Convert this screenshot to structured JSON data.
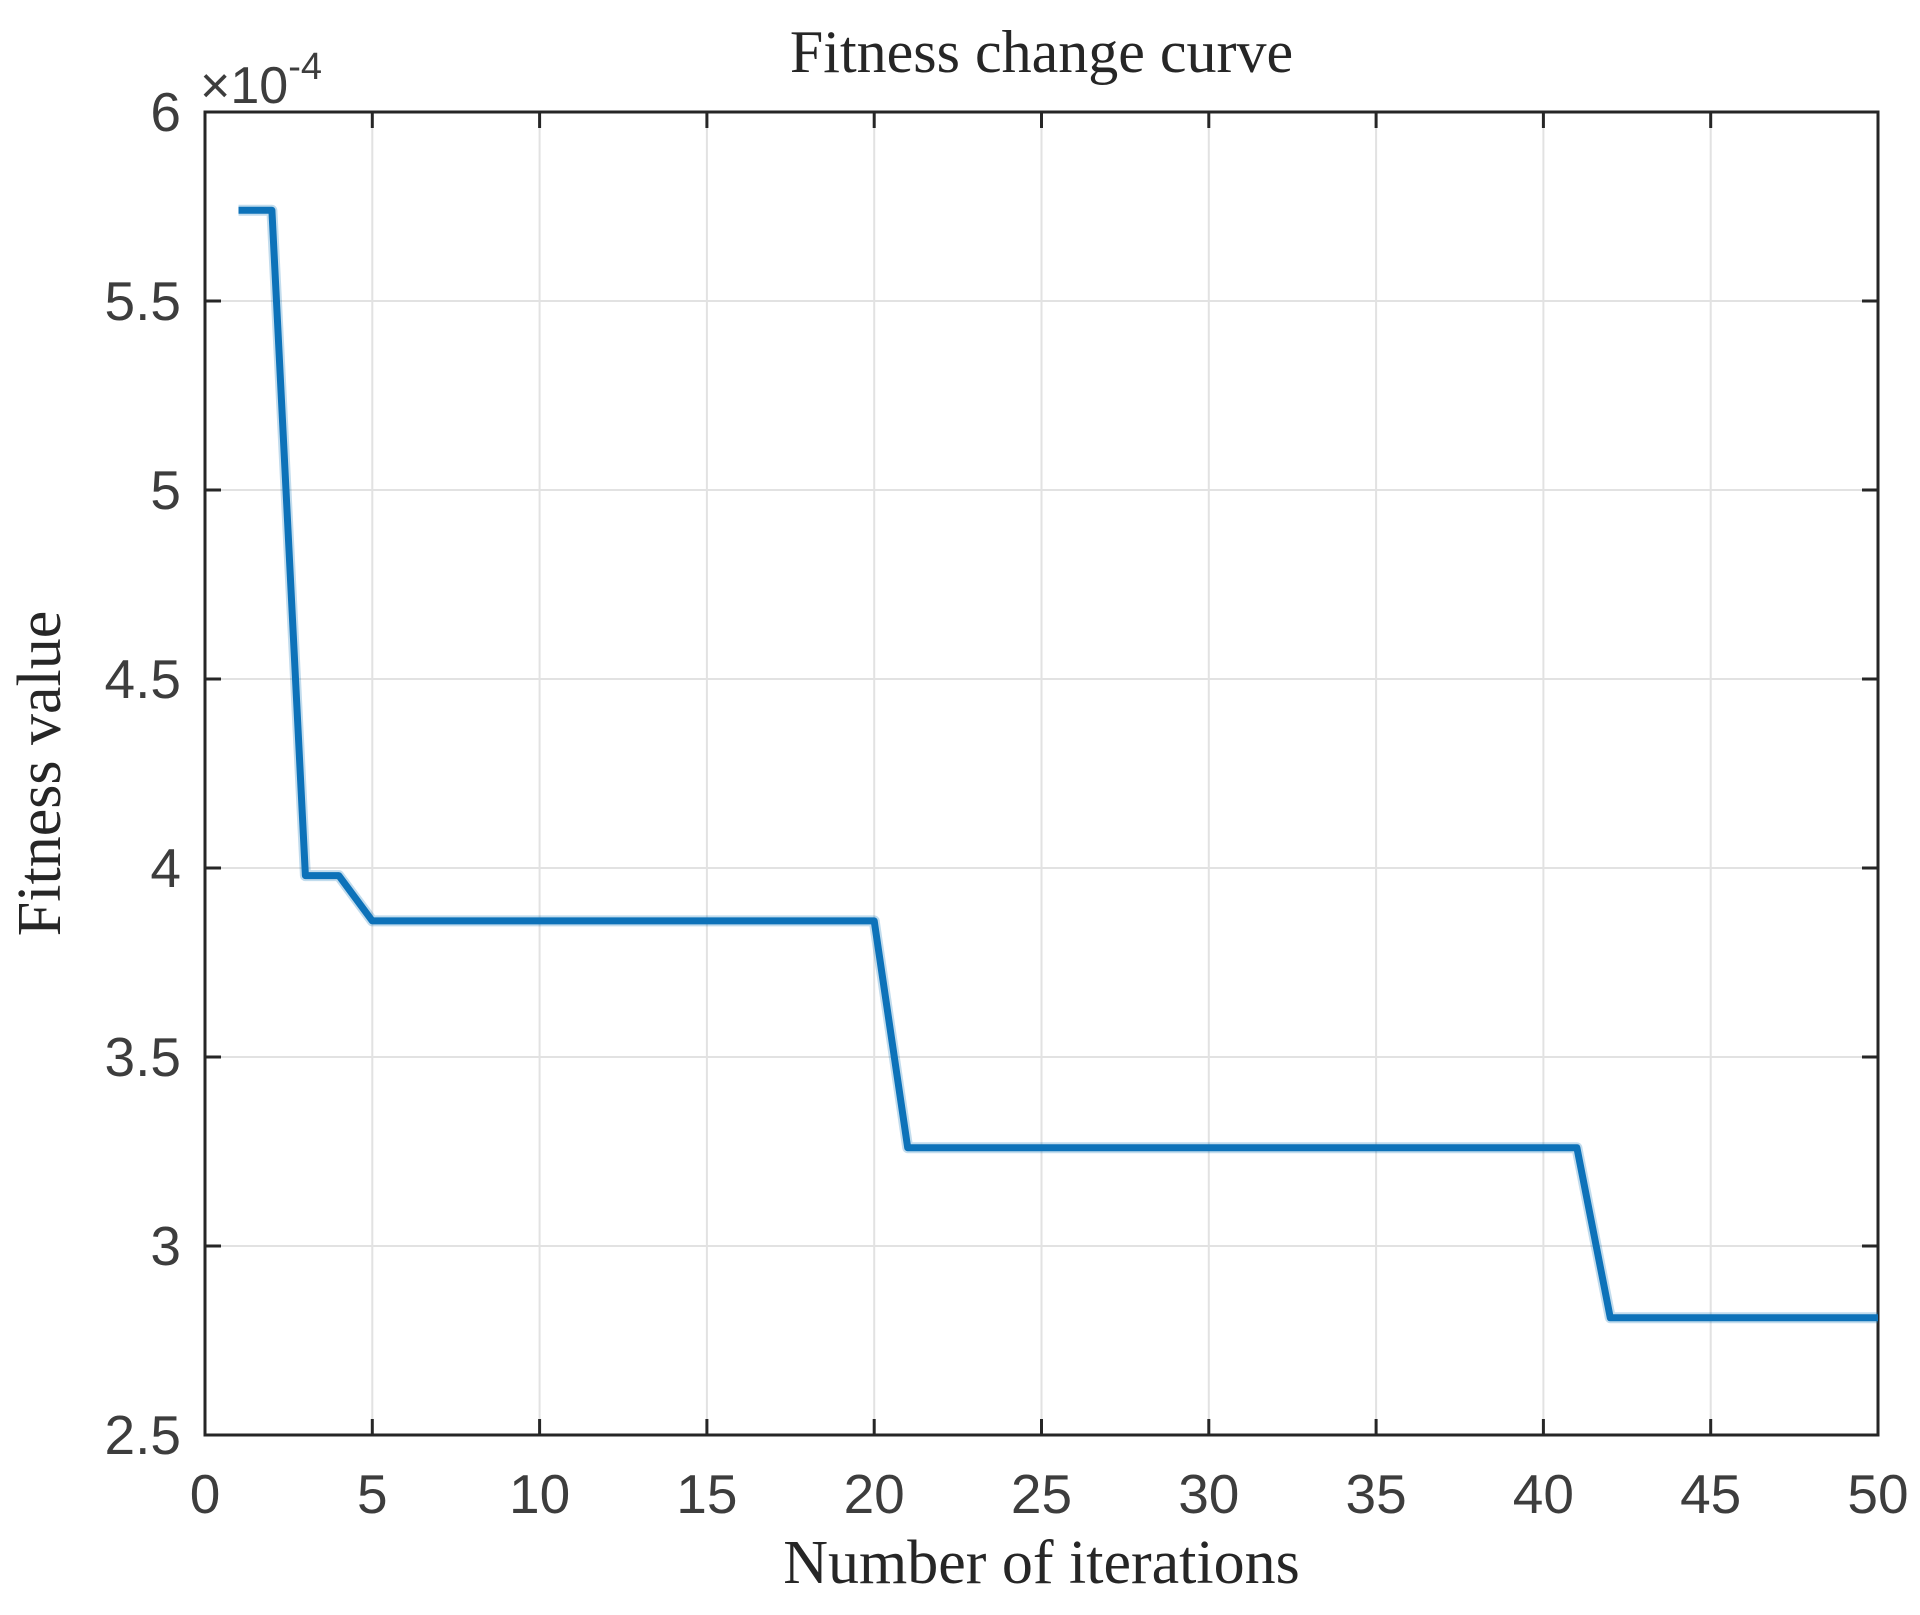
{
  "figure": {
    "title": "Fitness change curve",
    "xlabel": "Number of iterations",
    "ylabel": "Fitness value",
    "exponent_base": "×10",
    "exponent_power": "-4"
  },
  "colors": {
    "line": "#0d72b9",
    "line_halo": "rgba(13,114,185,0.25)",
    "axis": "#262626",
    "grid": "#e2e2e2",
    "tick_text": "#3d3d3d",
    "label_text": "#262626",
    "background": "#ffffff"
  },
  "chart_data": {
    "type": "line",
    "title": "Fitness change curve",
    "xlabel": "Number of iterations",
    "ylabel": "Fitness value",
    "y_scale_annotation": "×10^-4",
    "xlim": [
      0,
      50
    ],
    "ylim_times_1e4": [
      2.5,
      6
    ],
    "xticks": [
      0,
      5,
      10,
      15,
      20,
      25,
      30,
      35,
      40,
      45,
      50
    ],
    "yticks_times_1e4": [
      2.5,
      3,
      3.5,
      4,
      4.5,
      5,
      5.5,
      6
    ],
    "grid": true,
    "legend": "none",
    "series": [
      {
        "name": "fitness",
        "x": [
          1,
          2,
          3,
          4,
          5,
          6,
          7,
          8,
          9,
          10,
          11,
          12,
          13,
          14,
          15,
          16,
          17,
          18,
          19,
          20,
          21,
          22,
          23,
          24,
          25,
          26,
          27,
          28,
          29,
          30,
          31,
          32,
          33,
          34,
          35,
          36,
          37,
          38,
          39,
          40,
          41,
          42,
          43,
          44,
          45,
          46,
          47,
          48,
          49,
          50
        ],
        "y_times_1e4": [
          5.74,
          5.74,
          3.98,
          3.98,
          3.86,
          3.86,
          3.86,
          3.86,
          3.86,
          3.86,
          3.86,
          3.86,
          3.86,
          3.86,
          3.86,
          3.86,
          3.86,
          3.86,
          3.86,
          3.86,
          3.26,
          3.26,
          3.26,
          3.26,
          3.26,
          3.26,
          3.26,
          3.26,
          3.26,
          3.26,
          3.26,
          3.26,
          3.26,
          3.26,
          3.26,
          3.26,
          3.26,
          3.26,
          3.26,
          3.26,
          3.26,
          2.81,
          2.81,
          2.81,
          2.81,
          2.81,
          2.81,
          2.81,
          2.81,
          2.81
        ]
      }
    ]
  }
}
